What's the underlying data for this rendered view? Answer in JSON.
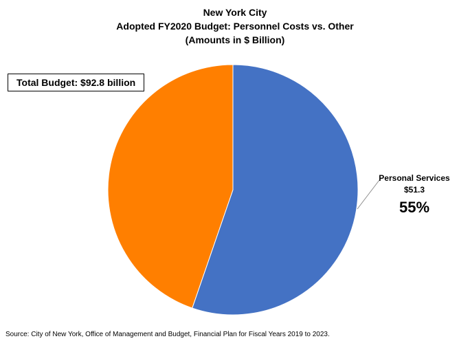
{
  "chart_data": {
    "type": "pie",
    "title_lines": [
      "New York City",
      "Adopted FY2020 Budget: Personnel Costs vs. Other",
      "(Amounts in $ Billion)"
    ],
    "total_label": "Total Budget: $92.8 billion",
    "source": "Source: City of New York, Office of Management and Budget, Financial Plan for Fiscal Years 2019 to 2023.",
    "slices": [
      {
        "label": "Personal Services",
        "value": 51.3,
        "value_text": "$51.3",
        "percent_text": "55%",
        "color": "#4472C4"
      },
      {
        "label": "",
        "value": 41.5,
        "value_text": "",
        "percent_text": "",
        "color": "#FF7F00"
      }
    ],
    "start_angle_deg": 0,
    "direction": "clockwise"
  }
}
